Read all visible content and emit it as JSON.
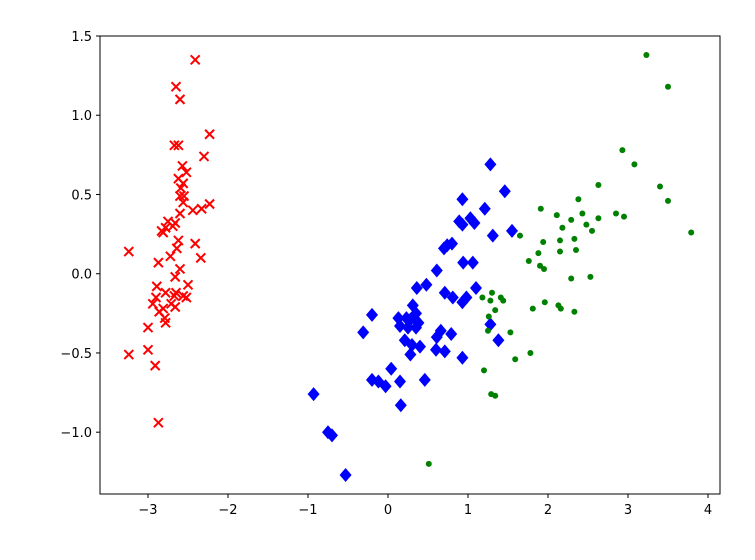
{
  "chart_data": {
    "type": "scatter",
    "xlim": [
      -3.6,
      4.15
    ],
    "ylim": [
      -1.39,
      1.5
    ],
    "xticks": [
      {
        "value": -3,
        "label": "−3"
      },
      {
        "value": -2,
        "label": "−2"
      },
      {
        "value": -1,
        "label": "−1"
      },
      0,
      1,
      2,
      3,
      4
    ],
    "yticks": [
      {
        "value": -1,
        "label": "−1.0"
      },
      {
        "value": -0.5,
        "label": "−0.5"
      },
      {
        "value": 0,
        "label": "0.0"
      },
      0.5,
      {
        "value": 1,
        "label": "1.0"
      },
      1.5
    ],
    "grid": false,
    "series": [
      {
        "color": "#ff0000",
        "marker": "x",
        "x": [
          -2.41,
          -2.65,
          -2.6,
          -2.23,
          -2.67,
          -2.62,
          -2.3,
          -2.57,
          -2.52,
          -2.62,
          -2.56,
          -2.59,
          -2.6,
          -2.55,
          -2.56,
          -2.23,
          -2.33,
          -2.44,
          -2.6,
          -2.75,
          -2.66,
          -2.69,
          -2.78,
          -2.81,
          -2.83,
          -2.62,
          -2.41,
          -2.64,
          -3.24,
          -2.72,
          -2.34,
          -2.87,
          -2.6,
          -2.66,
          -2.5,
          -2.89,
          -2.78,
          -2.65,
          -2.56,
          -2.67,
          -2.52,
          -2.9,
          -2.94,
          -2.71,
          -2.81,
          -2.66,
          -2.86,
          -2.79,
          -2.78,
          -3.0,
          -3.24,
          -3.0,
          -2.91,
          -2.87
        ],
        "values": [
          1.35,
          1.18,
          1.1,
          0.88,
          0.81,
          0.81,
          0.74,
          0.68,
          0.64,
          0.6,
          0.57,
          0.54,
          0.49,
          0.49,
          0.45,
          0.44,
          0.41,
          0.4,
          0.38,
          0.33,
          0.32,
          0.3,
          0.29,
          0.26,
          0.27,
          0.21,
          0.19,
          0.16,
          0.14,
          0.11,
          0.1,
          0.07,
          0.03,
          -0.02,
          -0.07,
          -0.08,
          -0.12,
          -0.12,
          -0.14,
          -0.14,
          -0.15,
          -0.15,
          -0.19,
          -0.19,
          -0.22,
          -0.21,
          -0.24,
          -0.28,
          -0.31,
          -0.34,
          -0.51,
          -0.48,
          -0.58,
          -0.94
        ]
      },
      {
        "color": "#0000ff",
        "marker": "D",
        "x": [
          1.28,
          1.46,
          0.93,
          1.21,
          1.03,
          1.08,
          0.89,
          0.93,
          1.55,
          1.31,
          0.8,
          0.7,
          0.74,
          0.94,
          1.06,
          0.61,
          0.36,
          0.48,
          1.1,
          0.71,
          0.81,
          0.93,
          0.98,
          0.31,
          0.35,
          -0.2,
          0.13,
          0.23,
          0.28,
          0.38,
          1.28,
          0.15,
          0.25,
          0.35,
          -0.31,
          0.66,
          0.79,
          0.61,
          0.21,
          0.3,
          1.38,
          0.6,
          0.71,
          0.4,
          0.28,
          0.04,
          0.93,
          -0.2,
          -0.12,
          -0.03,
          0.15,
          0.46,
          -0.93,
          0.16,
          -0.75,
          -0.7,
          -0.53
        ],
        "values": [
          0.69,
          0.52,
          0.47,
          0.41,
          0.35,
          0.32,
          0.33,
          0.31,
          0.27,
          0.24,
          0.19,
          0.16,
          0.18,
          0.07,
          0.07,
          0.02,
          -0.09,
          -0.07,
          -0.09,
          -0.12,
          -0.15,
          -0.18,
          -0.15,
          -0.2,
          -0.25,
          -0.26,
          -0.28,
          -0.28,
          -0.29,
          -0.31,
          -0.32,
          -0.33,
          -0.34,
          -0.34,
          -0.37,
          -0.36,
          -0.38,
          -0.4,
          -0.42,
          -0.45,
          -0.42,
          -0.48,
          -0.49,
          -0.46,
          -0.51,
          -0.6,
          -0.53,
          -0.67,
          -0.68,
          -0.71,
          -0.68,
          -0.67,
          -0.76,
          -0.83,
          -1.0,
          -1.02,
          -1.27
        ]
      },
      {
        "color": "#008000",
        "marker": "o",
        "x": [
          3.23,
          3.5,
          2.93,
          3.08,
          2.63,
          3.4,
          2.38,
          3.5,
          2.85,
          2.95,
          1.91,
          2.11,
          2.43,
          2.29,
          2.48,
          2.63,
          2.55,
          2.18,
          3.79,
          1.65,
          2.33,
          2.15,
          1.94,
          2.15,
          1.88,
          2.35,
          1.76,
          1.9,
          1.95,
          2.53,
          2.29,
          1.18,
          1.28,
          1.41,
          1.3,
          1.44,
          1.96,
          2.13,
          2.16,
          1.81,
          2.33,
          1.34,
          1.26,
          1.53,
          1.25,
          1.78,
          1.59,
          1.2,
          1.29,
          1.34,
          0.51
        ],
        "values": [
          1.38,
          1.18,
          0.78,
          0.69,
          0.56,
          0.55,
          0.47,
          0.46,
          0.38,
          0.36,
          0.41,
          0.37,
          0.38,
          0.34,
          0.31,
          0.35,
          0.27,
          0.29,
          0.26,
          0.24,
          0.22,
          0.21,
          0.2,
          0.14,
          0.13,
          0.15,
          0.08,
          0.05,
          0.03,
          -0.02,
          -0.03,
          -0.15,
          -0.17,
          -0.15,
          -0.12,
          -0.17,
          -0.18,
          -0.2,
          -0.22,
          -0.22,
          -0.24,
          -0.23,
          -0.27,
          -0.37,
          -0.36,
          -0.5,
          -0.54,
          -0.61,
          -0.76,
          -0.77,
          -1.2
        ]
      }
    ]
  }
}
